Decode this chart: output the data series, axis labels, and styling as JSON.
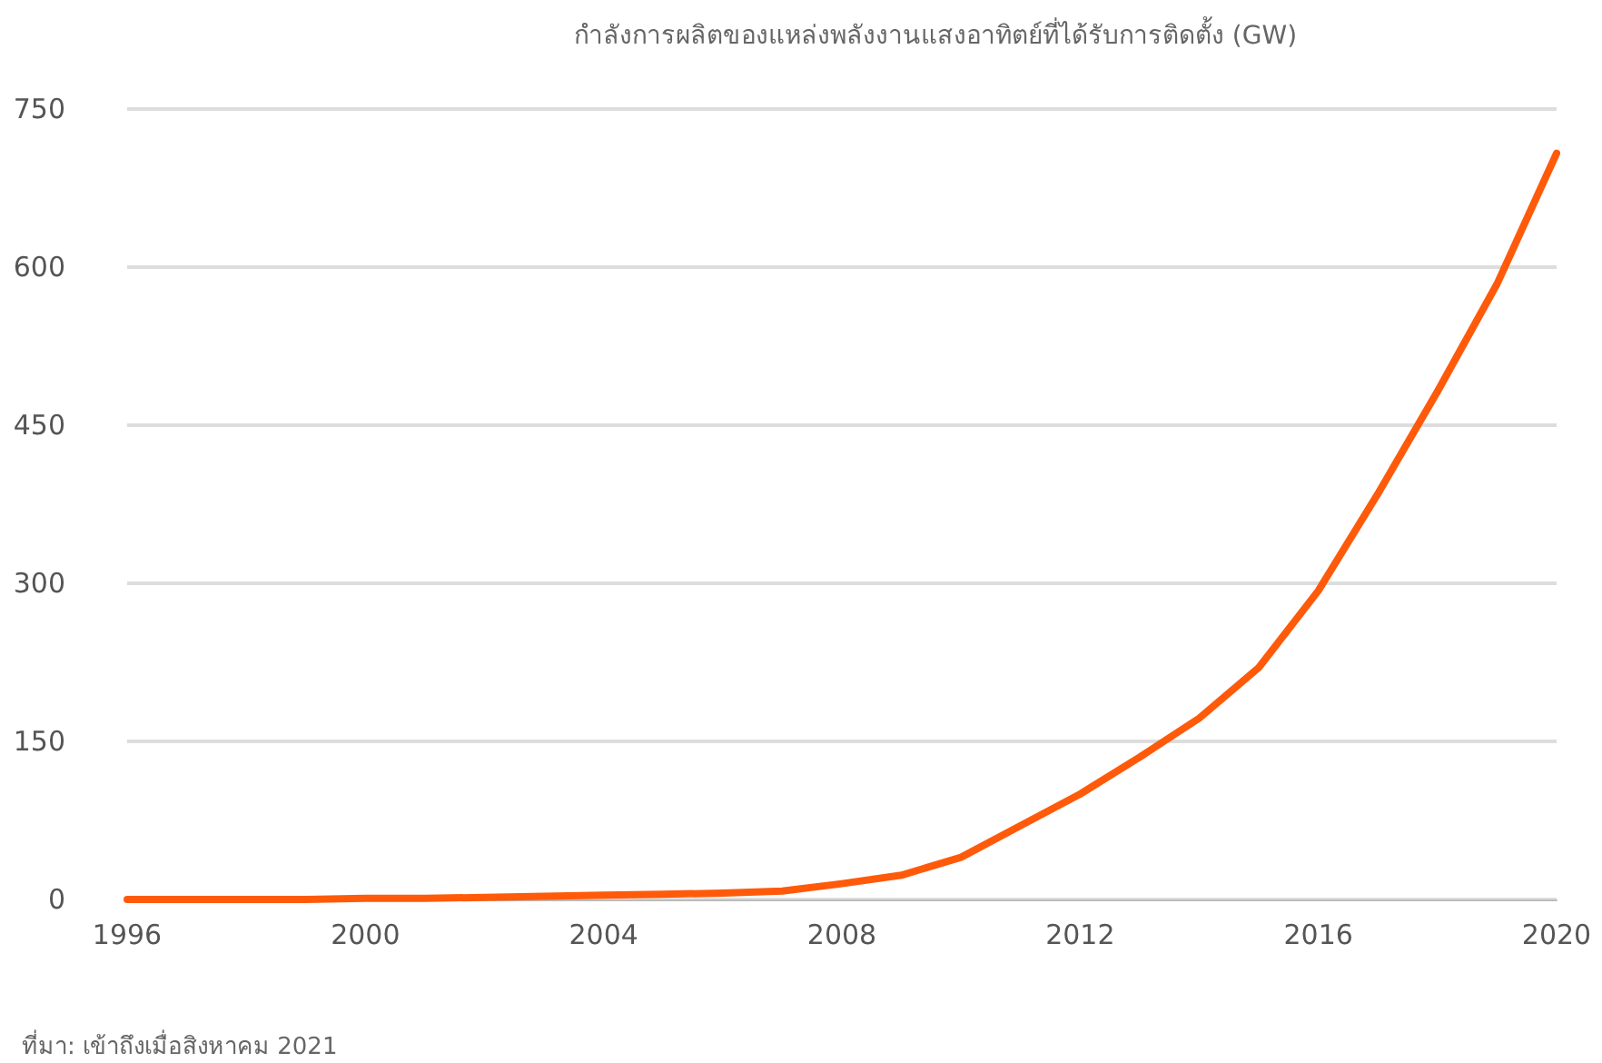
{
  "chart_data": {
    "type": "line",
    "title": "กำลังการผลิตของแหล่งพลังงานแสงอาทิตย์ที่ได้รับการติดตั้ง (GW)",
    "x": [
      1996,
      1997,
      1998,
      1999,
      2000,
      2001,
      2002,
      2003,
      2004,
      2005,
      2006,
      2007,
      2008,
      2009,
      2010,
      2011,
      2012,
      2013,
      2014,
      2015,
      2016,
      2017,
      2018,
      2019,
      2020
    ],
    "series": [
      {
        "color": "#ff5a0a",
        "values": [
          0,
          0,
          0,
          0,
          1,
          1,
          2,
          3,
          4,
          5,
          6,
          8,
          15,
          23,
          40,
          70,
          100,
          135,
          172,
          220,
          293,
          385,
          482,
          584,
          708
        ]
      }
    ],
    "xlim": [
      1996,
      2020
    ],
    "xticks": [
      1996,
      2000,
      2004,
      2008,
      2012,
      2016,
      2020
    ],
    "ylim": [
      0,
      750
    ],
    "yticks": [
      0,
      150,
      300,
      450,
      600,
      750
    ],
    "grid": "y",
    "marker": "none",
    "line_style": "solid",
    "annotations": [
      "ที่มา: เข้าถึงเมื่อสิงหาคม 2021"
    ]
  }
}
